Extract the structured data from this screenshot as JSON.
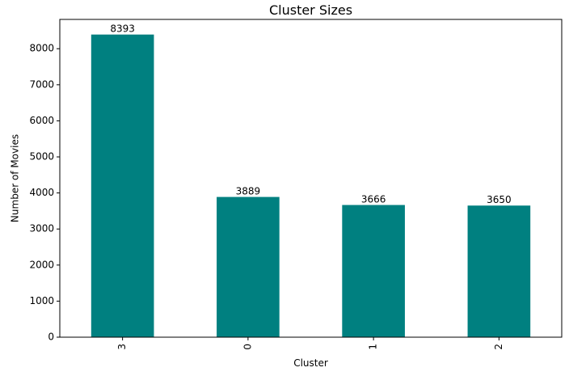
{
  "chart_data": {
    "type": "bar",
    "title": "Cluster Sizes",
    "xlabel": "Cluster",
    "ylabel": "Number of Movies",
    "categories": [
      "3",
      "0",
      "1",
      "2"
    ],
    "values": [
      8393,
      3889,
      3666,
      3650
    ],
    "data_labels": [
      "8393",
      "3889",
      "3666",
      "3650"
    ],
    "ylim": [
      0,
      8812.65
    ],
    "yticks": [
      0,
      1000,
      2000,
      3000,
      4000,
      5000,
      6000,
      7000,
      8000
    ],
    "ytick_labels": [
      "0",
      "1000",
      "2000",
      "3000",
      "4000",
      "5000",
      "6000",
      "7000",
      "8000"
    ],
    "bar_color": "#008080",
    "grid": false,
    "legend": "none",
    "xtick_rotation": "vertical"
  }
}
